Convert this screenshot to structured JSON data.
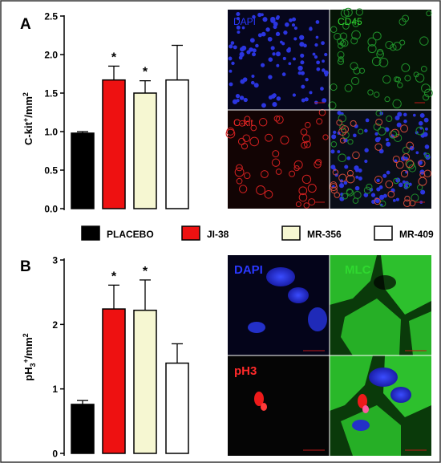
{
  "panels": {
    "a": {
      "letter": "A",
      "ylabel_main": "C-kit",
      "ylabel_sup": "+",
      "ylabel_unit": "/mm",
      "ylabel_unit_sup": "2",
      "image_labels": {
        "tl": "DAPI",
        "tr": "CD45",
        "bl": "C-kit"
      }
    },
    "b": {
      "letter": "B",
      "ylabel_main": "pH",
      "ylabel_sub": "3",
      "ylabel_sup": "+",
      "ylabel_unit": "/mm",
      "ylabel_unit_sup": "2",
      "image_labels": {
        "tl": "DAPI",
        "tr": "MLC",
        "bl": "pH3"
      }
    }
  },
  "legend": [
    {
      "label": "PLACEBO",
      "color": "#000000"
    },
    {
      "label": "JI-38",
      "color": "#ee1111"
    },
    {
      "label": "MR-356",
      "color": "#f6f7d2"
    },
    {
      "label": "MR-409",
      "color": "#ffffff"
    }
  ],
  "chart_data": [
    {
      "type": "bar",
      "categories": [
        "PLACEBO",
        "JI-38",
        "MR-356",
        "MR-409"
      ],
      "values": [
        0.98,
        1.67,
        1.5,
        1.67
      ],
      "errors": [
        0.02,
        0.18,
        0.16,
        0.45
      ],
      "significance": [
        "",
        "*",
        "*",
        ""
      ],
      "colors": [
        "#000000",
        "#ee1111",
        "#f6f7d2",
        "#ffffff"
      ],
      "ylim": [
        0,
        2.5
      ],
      "yticks": [
        "0.0",
        "0.5",
        "1.0",
        "1.5",
        "2.0",
        "2.5"
      ],
      "ylabel": "C-kit+/mm2"
    },
    {
      "type": "bar",
      "categories": [
        "PLACEBO",
        "JI-38",
        "MR-356",
        "MR-409"
      ],
      "values": [
        0.76,
        2.24,
        2.22,
        1.4
      ],
      "errors": [
        0.06,
        0.37,
        0.47,
        0.3
      ],
      "significance": [
        "",
        "*",
        "*",
        ""
      ],
      "colors": [
        "#000000",
        "#ee1111",
        "#f6f7d2",
        "#ffffff"
      ],
      "ylim": [
        0,
        3
      ],
      "yticks": [
        "0",
        "1",
        "2",
        "3"
      ],
      "ylabel": "pH3+/mm2"
    }
  ]
}
